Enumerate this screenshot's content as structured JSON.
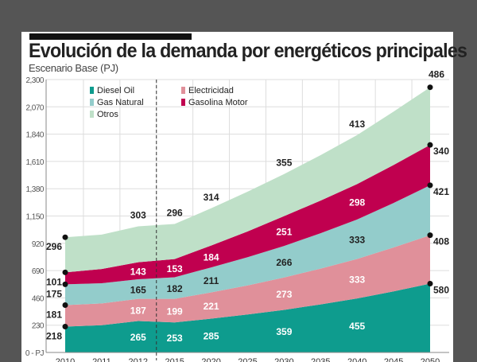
{
  "chart_data": {
    "type": "area",
    "stacked": true,
    "title": "Evolución de la demanda por energéticos principales",
    "subtitle": "Escenario Base (PJ)",
    "ylabel": "PJ",
    "ylim": [
      0,
      2300
    ],
    "yticks": [
      "0 - PJ",
      "230",
      "460",
      "690",
      "920",
      "1,150",
      "1,380",
      "1,610",
      "1,840",
      "2,070",
      "2,300"
    ],
    "ytick_values": [
      0,
      230,
      460,
      690,
      920,
      1150,
      1380,
      1610,
      1840,
      2070,
      2300
    ],
    "categories": [
      "2010",
      "2011",
      "2012",
      "2015",
      "2020",
      "2025",
      "2030",
      "2035",
      "2040",
      "2045",
      "2050"
    ],
    "grid": true,
    "legend": "top-left",
    "divider_after": "2012",
    "series": [
      {
        "name": "Diesel Oil",
        "color": "#0e9c8e",
        "label_color": "#ffffff",
        "values": [
          218,
          230,
          265,
          253,
          285,
          320,
          359,
          405,
          455,
          515,
          580
        ],
        "labels": {
          "0": "218",
          "2": "265",
          "3": "253",
          "4": "285",
          "6": "359",
          "8": "455",
          "10": "580"
        }
      },
      {
        "name": "Electricidad",
        "color": "#e0909a",
        "label_color": "#ffffff",
        "values": [
          181,
          183,
          187,
          199,
          221,
          245,
          273,
          302,
          333,
          370,
          408
        ],
        "labels": {
          "0": "181",
          "2": "187",
          "3": "199",
          "4": "221",
          "6": "273",
          "8": "333",
          "10": "408"
        }
      },
      {
        "name": "Gas Natural",
        "color": "#93cccb",
        "label_color": "#222222",
        "values": [
          175,
          170,
          165,
          182,
          211,
          238,
          266,
          298,
          333,
          375,
          421
        ],
        "labels": {
          "0": "175",
          "2": "165",
          "3": "182",
          "4": "211",
          "6": "266",
          "8": "333",
          "10": "421"
        }
      },
      {
        "name": "Gasolina Motor",
        "color": "#c0004f",
        "label_color": "#ffffff",
        "values": [
          101,
          120,
          143,
          153,
          184,
          217,
          251,
          275,
          298,
          320,
          340
        ],
        "labels": {
          "0": "101",
          "2": "143",
          "3": "153",
          "4": "184",
          "6": "251",
          "8": "298",
          "10": "340"
        }
      },
      {
        "name": "Otros",
        "color": "#bfe0c8",
        "label_color": "#222222",
        "values": [
          296,
          290,
          303,
          296,
          314,
          335,
          355,
          383,
          413,
          450,
          486
        ],
        "labels": {
          "0": "296",
          "2": "303",
          "3": "296",
          "4": "314",
          "6": "355",
          "8": "413",
          "10": "486"
        }
      }
    ]
  }
}
